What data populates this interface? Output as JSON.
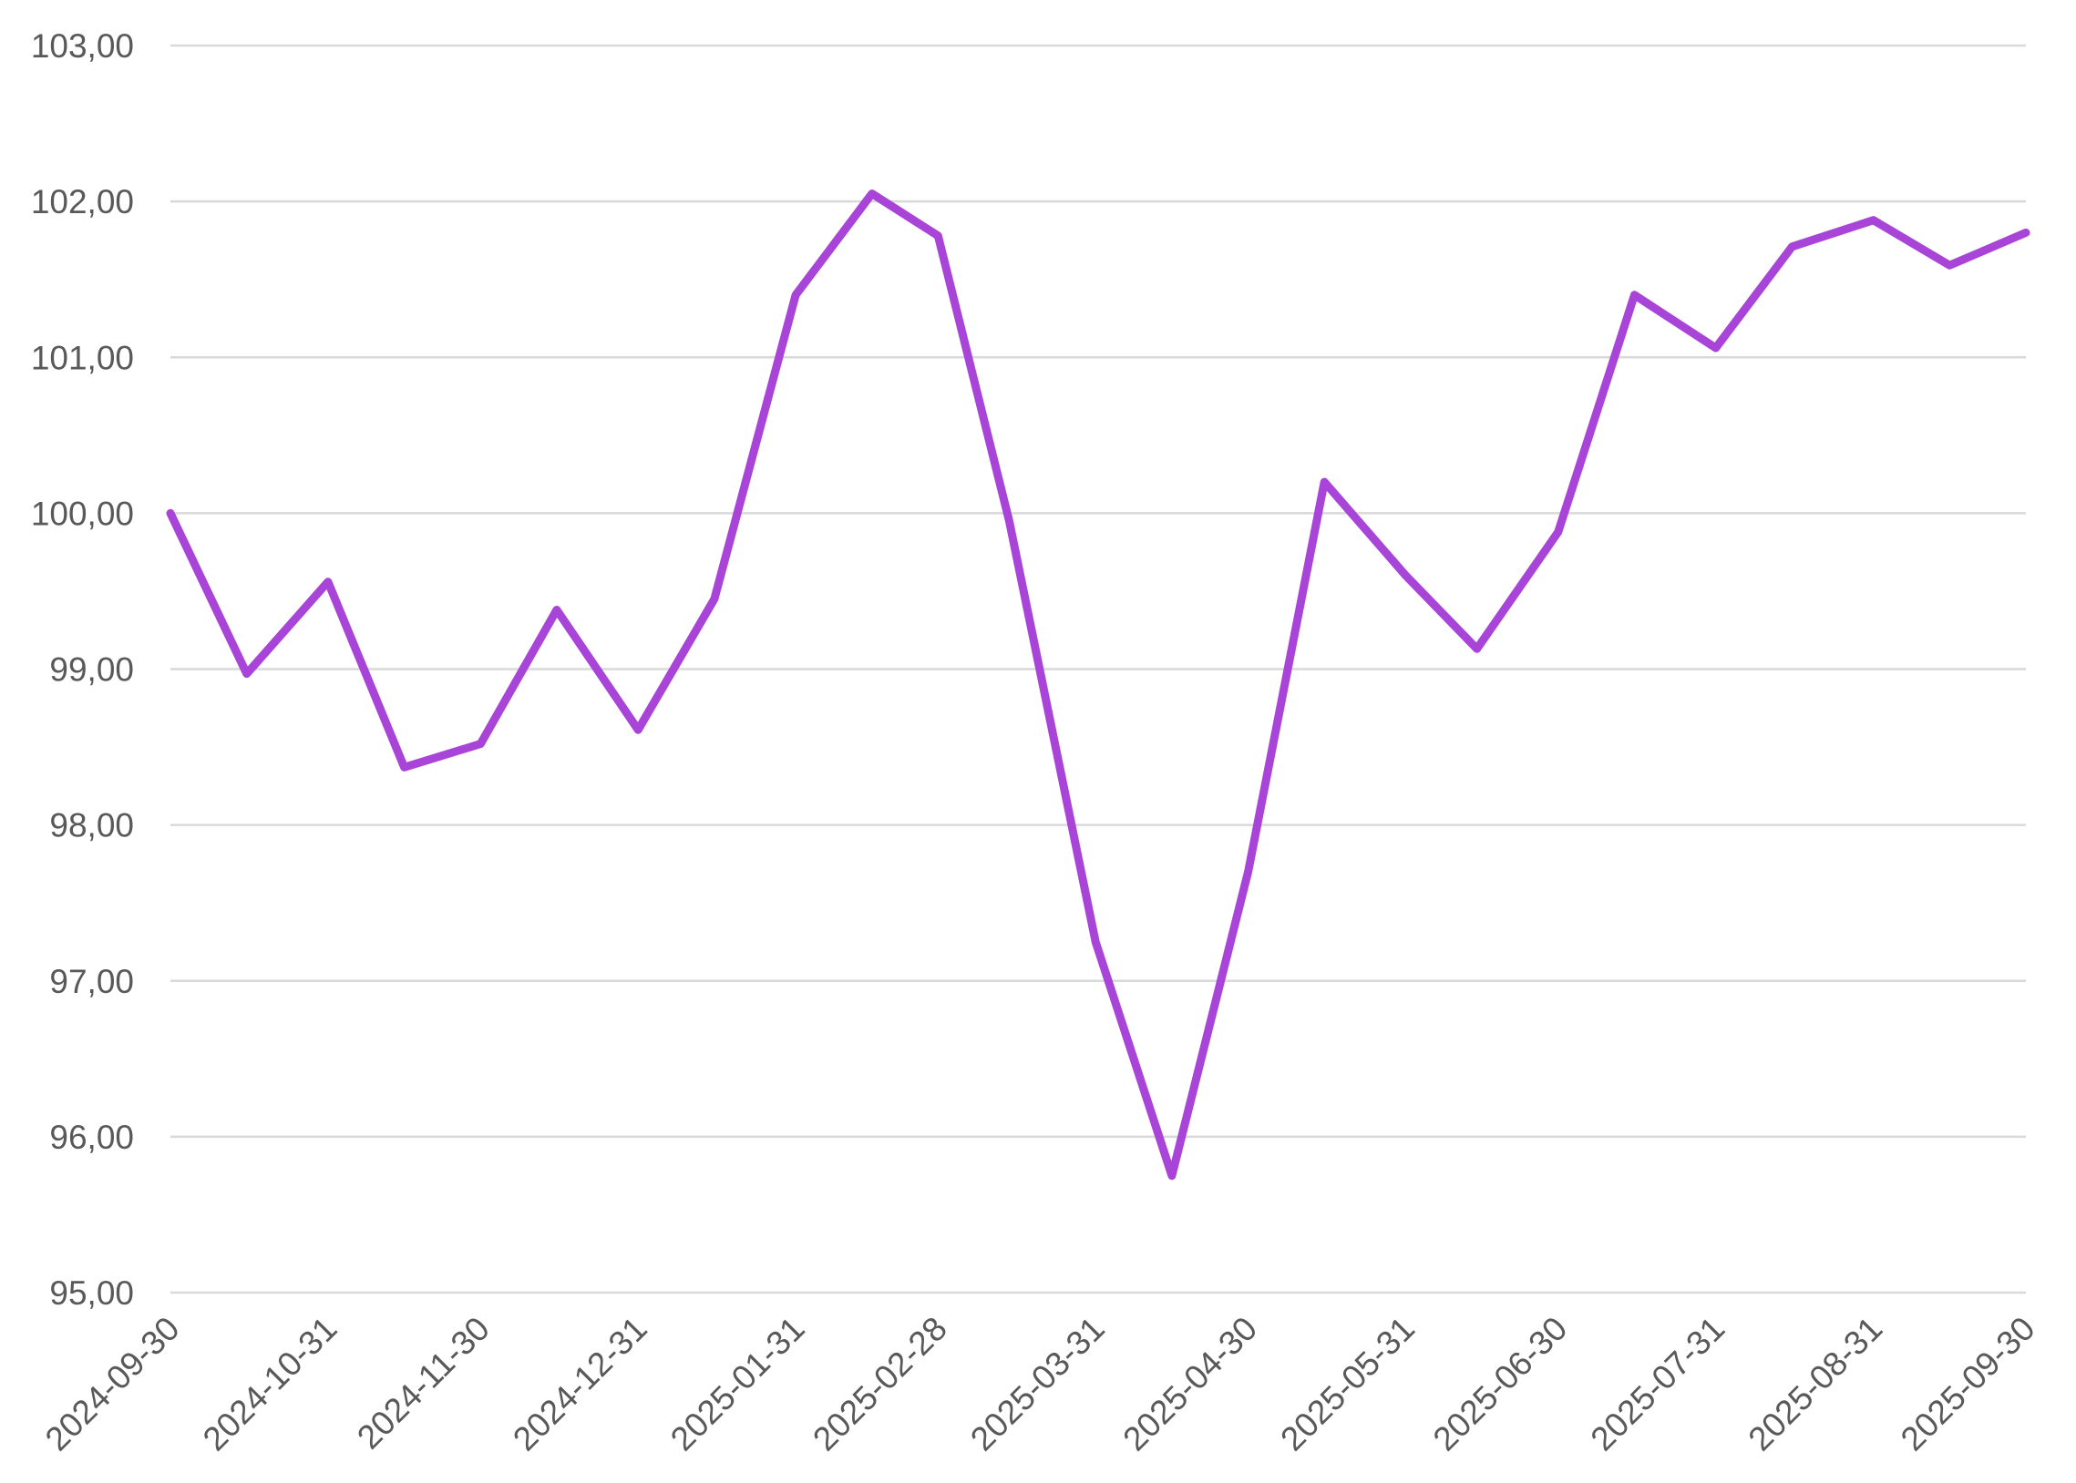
{
  "chart_data": {
    "type": "line",
    "title": "",
    "xlabel": "",
    "ylabel": "",
    "ylim": [
      95,
      103
    ],
    "y_ticks": [
      "95,00",
      "96,00",
      "97,00",
      "98,00",
      "99,00",
      "100,00",
      "101,00",
      "102,00",
      "103,00"
    ],
    "x_tick_labels": [
      "2024-09-30",
      "2024-10-31",
      "2024-11-30",
      "2024-12-31",
      "2025-01-31",
      "2025-02-28",
      "2025-03-31",
      "2025-04-30",
      "2025-05-31",
      "2025-06-30",
      "2025-07-31",
      "2025-08-31",
      "2025-09-30"
    ],
    "grid": true,
    "legend": "none",
    "series": [
      {
        "color": "#a944d9",
        "points": [
          {
            "x": "2024-09-30",
            "y": 100.0
          },
          {
            "x": "2024-10-15",
            "y": 98.97
          },
          {
            "x": "2024-10-31",
            "y": 99.56
          },
          {
            "x": "2024-11-15",
            "y": 98.37
          },
          {
            "x": "2024-11-30",
            "y": 98.52
          },
          {
            "x": "2024-12-15",
            "y": 99.38
          },
          {
            "x": "2024-12-31",
            "y": 98.61
          },
          {
            "x": "2025-01-15",
            "y": 99.45
          },
          {
            "x": "2025-01-31",
            "y": 101.4
          },
          {
            "x": "2025-02-15",
            "y": 102.05
          },
          {
            "x": "2025-02-28",
            "y": 101.78
          },
          {
            "x": "2025-03-14",
            "y": 99.95
          },
          {
            "x": "2025-03-31",
            "y": 97.25
          },
          {
            "x": "2025-04-15",
            "y": 95.75
          },
          {
            "x": "2025-04-30",
            "y": 97.7
          },
          {
            "x": "2025-05-15",
            "y": 100.2
          },
          {
            "x": "2025-05-31",
            "y": 99.6
          },
          {
            "x": "2025-06-14",
            "y": 99.13
          },
          {
            "x": "2025-06-30",
            "y": 99.88
          },
          {
            "x": "2025-07-15",
            "y": 101.4
          },
          {
            "x": "2025-07-31",
            "y": 101.06
          },
          {
            "x": "2025-08-15",
            "y": 101.71
          },
          {
            "x": "2025-08-31",
            "y": 101.88
          },
          {
            "x": "2025-09-15",
            "y": 101.59
          },
          {
            "x": "2025-09-30",
            "y": 101.8
          }
        ]
      }
    ]
  }
}
